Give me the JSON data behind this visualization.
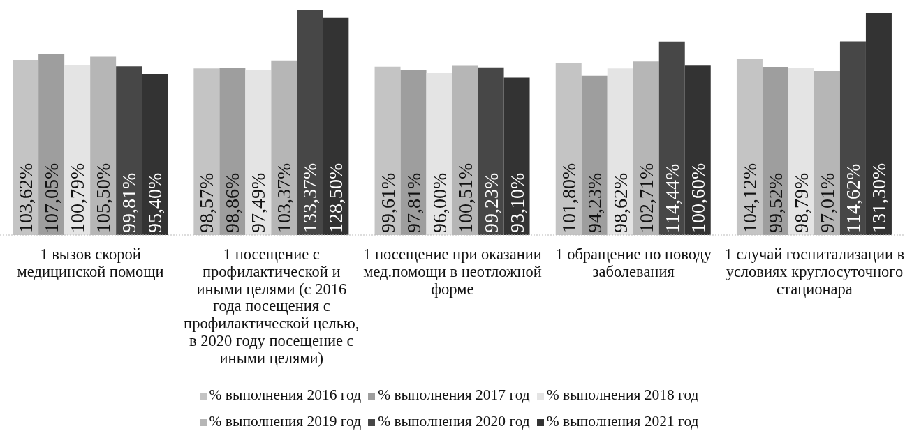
{
  "chart_data": {
    "type": "bar",
    "categories": [
      "1 вызов скорой медицинской помощи",
      "1 посещение с профилактической и иными целями (с 2016 года посещения с профилактической целью, в 2020 году посещение с иными целями)",
      "1 посещение при оказании мед.помощи в неотложной форме",
      "1 обращение по поводу заболевания",
      "1 случай госпитализации в условиях круглосуточного стационара"
    ],
    "series": [
      {
        "name": "% выполнения 2016 год",
        "color": "#c4c4c4",
        "values": [
          103.62,
          98.57,
          99.61,
          101.8,
          104.12
        ],
        "value_labels": [
          "103,62%",
          "98,57%",
          "99,61%",
          "101,80%",
          "104,12%"
        ]
      },
      {
        "name": "% выполнения 2017 год",
        "color": "#9e9e9e",
        "values": [
          107.05,
          98.86,
          97.81,
          94.23,
          99.52
        ],
        "value_labels": [
          "107,05%",
          "98,86%",
          "97,81%",
          "94,23%",
          "99,52%"
        ]
      },
      {
        "name": "% выполнения 2018 год",
        "color": "#e4e4e4",
        "values": [
          100.79,
          97.49,
          96.0,
          98.62,
          98.79
        ],
        "value_labels": [
          "100,79%",
          "97,49%",
          "96,00%",
          "98,62%",
          "98,79%"
        ]
      },
      {
        "name": "% выполнения 2019 год",
        "color": "#b6b6b6",
        "values": [
          105.5,
          103.37,
          100.51,
          102.71,
          97.01
        ],
        "value_labels": [
          "105,50%",
          "103,37%",
          "100,51%",
          "102,71%",
          "97,01%"
        ]
      },
      {
        "name": "% выполнения 2020 год",
        "color": "#474747",
        "values": [
          99.81,
          133.37,
          99.23,
          114.44,
          114.62
        ],
        "value_labels": [
          "99,81%",
          "133,37%",
          "99,23%",
          "114,44%",
          "114,62%"
        ]
      },
      {
        "name": "% выполнения 2021 год",
        "color": "#333333",
        "values": [
          95.4,
          128.5,
          93.1,
          100.6,
          131.3
        ],
        "value_labels": [
          "95,40%",
          "128,50%",
          "93,10%",
          "100,60%",
          "131,30%"
        ]
      }
    ],
    "legend": "bottom"
  }
}
